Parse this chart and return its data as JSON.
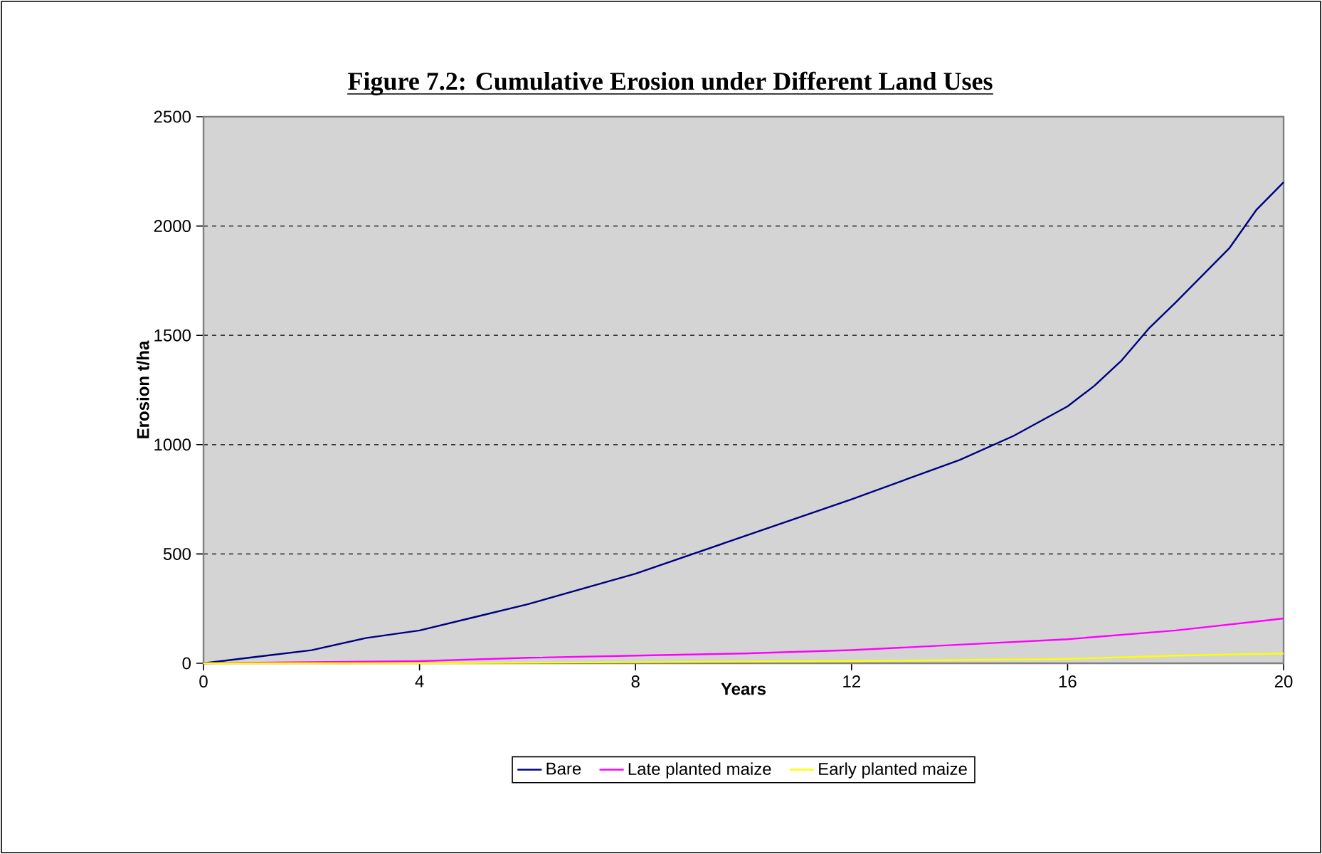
{
  "chart_data": {
    "type": "line",
    "title": "Figure 7.2: Cumulative Erosion under Different Land Uses",
    "xlabel": "Years",
    "ylabel": "Erosion t/ha",
    "xlim": [
      0,
      20
    ],
    "xticks": [
      0,
      4,
      8,
      12,
      16,
      20
    ],
    "ylim": [
      0,
      2500
    ],
    "yticks": [
      0,
      500,
      1000,
      1500,
      2000,
      2500
    ],
    "grid": "y",
    "legend": "bottom",
    "marker": "none",
    "line_style": "solid",
    "series": [
      {
        "name": "Bare",
        "color": "#000080",
        "x": [
          0,
          1,
          2,
          3,
          4,
          5,
          6,
          7,
          8,
          9,
          10,
          11,
          12,
          13,
          14,
          15,
          16,
          16.5,
          17,
          17.5,
          18,
          19,
          19.5,
          20
        ],
        "values": [
          0,
          30,
          60,
          115,
          150,
          210,
          270,
          340,
          410,
          495,
          580,
          665,
          750,
          840,
          930,
          1040,
          1175,
          1270,
          1385,
          1530,
          1650,
          1900,
          2075,
          2200
        ]
      },
      {
        "name": "Late planted maize",
        "color": "#ff00ff",
        "x": [
          0,
          2,
          4,
          6,
          8,
          10,
          12,
          14,
          16,
          18,
          20
        ],
        "values": [
          0,
          5,
          10,
          25,
          35,
          45,
          60,
          85,
          110,
          150,
          205
        ]
      },
      {
        "name": "Early planted maize",
        "color": "#ffff00",
        "x": [
          0,
          4,
          8,
          12,
          16,
          18,
          20
        ],
        "values": [
          0,
          0,
          5,
          10,
          20,
          35,
          45
        ]
      }
    ]
  }
}
